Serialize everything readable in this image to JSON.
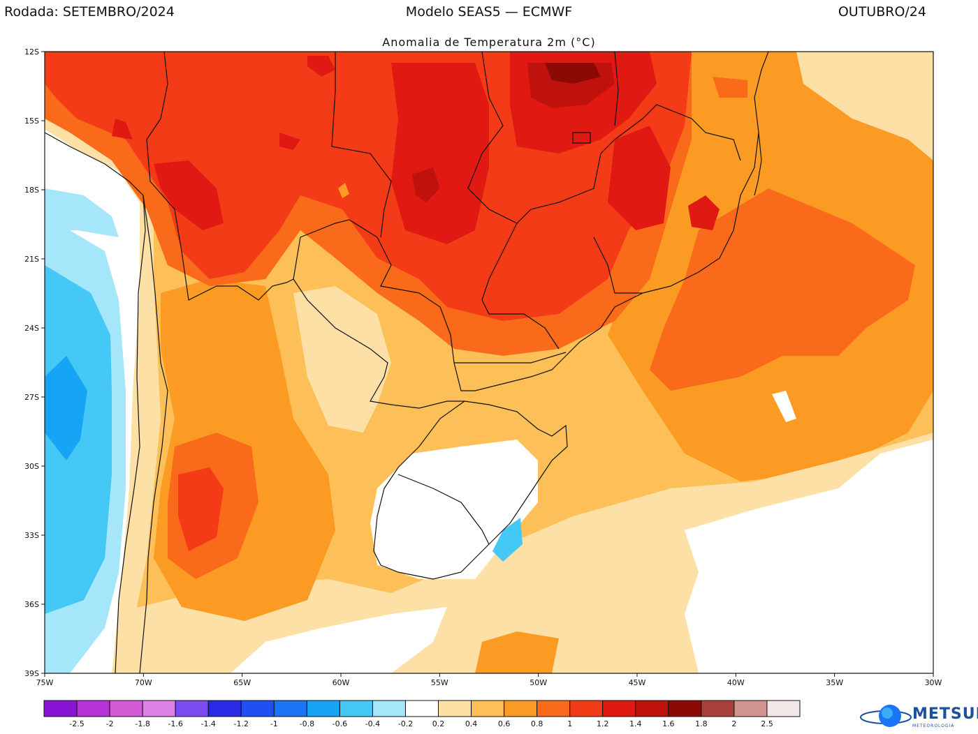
{
  "header": {
    "left": "Rodada: SETEMBRO/2024",
    "center": "Modelo SEAS5 — ECMWF",
    "right": "OUTUBRO/24"
  },
  "subtitle": "Anomalia de Temperatura 2m (°C)",
  "map": {
    "lon_range": [
      -75,
      -30
    ],
    "lat_range": [
      -39,
      -12
    ],
    "lat_ticks": [
      "12S",
      "15S",
      "18S",
      "21S",
      "24S",
      "27S",
      "30S",
      "33S",
      "36S",
      "39S"
    ],
    "lon_ticks": [
      "75W",
      "70W",
      "65W",
      "60W",
      "55W",
      "50W",
      "45W",
      "40W",
      "35W",
      "30W"
    ]
  },
  "legend": {
    "colors": [
      "#8a14d6",
      "#b432d8",
      "#d45ad6",
      "#dc82e6",
      "#7c4af2",
      "#2a2ae6",
      "#1e50f5",
      "#1c74f7",
      "#16a4f4",
      "#45c8f5",
      "#a5e6fb",
      "#ffffff",
      "#fde0a5",
      "#fdbf57",
      "#fb9b23",
      "#f96b1a",
      "#f43b17",
      "#e01a12",
      "#c0120d",
      "#8b0a06",
      "#a8403c",
      "#d29490",
      "#f2e6e6"
    ],
    "labels": [
      "-2.5",
      "-2",
      "-1.8",
      "-1.6",
      "-1.4",
      "-1.2",
      "-1",
      "-0.8",
      "-0.6",
      "-0.4",
      "-0.2",
      "0.2",
      "0.4",
      "0.6",
      "0.8",
      "1",
      "1.2",
      "1.4",
      "1.6",
      "1.8",
      "2",
      "2.5"
    ]
  },
  "logo": {
    "name": "METSUL",
    "sub": "METEOROLOGIA"
  }
}
